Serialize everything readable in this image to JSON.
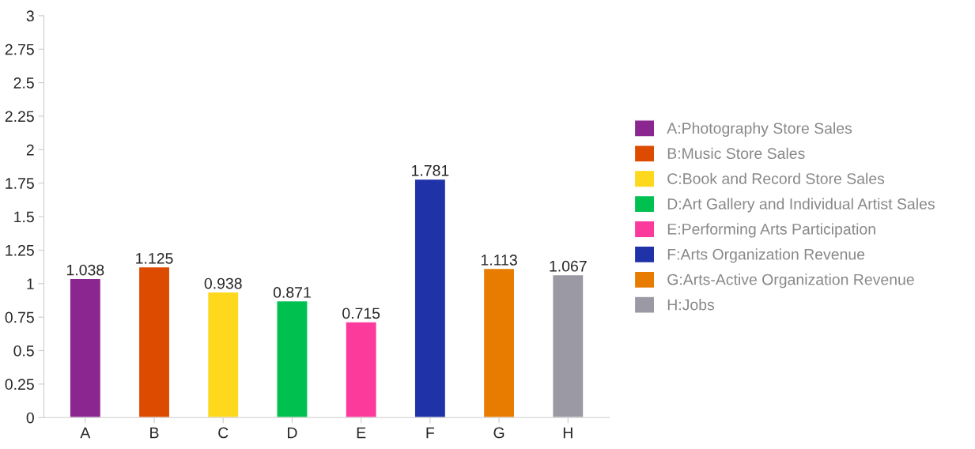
{
  "chart_data": {
    "type": "bar",
    "categories": [
      "A",
      "B",
      "C",
      "D",
      "E",
      "F",
      "G",
      "H"
    ],
    "series": [
      {
        "name": "A:Photography Store Sales",
        "color": "#8b2590",
        "values": [
          1.038,
          null,
          null,
          null,
          null,
          null,
          null,
          null
        ]
      },
      {
        "name": "B:Music Store Sales",
        "color": "#dd4b00",
        "values": [
          null,
          1.125,
          null,
          null,
          null,
          null,
          null,
          null
        ]
      },
      {
        "name": "C:Book and Record Store Sales",
        "color": "#fed81c",
        "values": [
          null,
          null,
          0.938,
          null,
          null,
          null,
          null,
          null
        ]
      },
      {
        "name": "D:Art Gallery and Individual Artist Sales",
        "color": "#00c04f",
        "values": [
          null,
          null,
          null,
          0.871,
          null,
          null,
          null,
          null
        ]
      },
      {
        "name": "E:Performing Arts Participation",
        "color": "#fb3a9b",
        "values": [
          null,
          null,
          null,
          null,
          0.715,
          null,
          null,
          null
        ]
      },
      {
        "name": "F:Arts Organization Revenue",
        "color": "#1f32a8",
        "values": [
          null,
          null,
          null,
          null,
          null,
          1.781,
          null,
          null
        ]
      },
      {
        "name": "G:Arts-Active Organization Revenue",
        "color": "#e87c00",
        "values": [
          null,
          null,
          null,
          null,
          null,
          null,
          1.113,
          null
        ]
      },
      {
        "name": "H:Jobs",
        "color": "#9a99a4",
        "values": [
          null,
          null,
          null,
          null,
          null,
          null,
          null,
          1.067
        ]
      }
    ],
    "ylim": [
      0,
      3
    ],
    "yticks": [
      0,
      0.25,
      0.5,
      0.75,
      1,
      1.25,
      1.5,
      1.75,
      2,
      2.25,
      2.5,
      2.75,
      3
    ],
    "data_labels": true,
    "legend": "right",
    "grid": false
  }
}
